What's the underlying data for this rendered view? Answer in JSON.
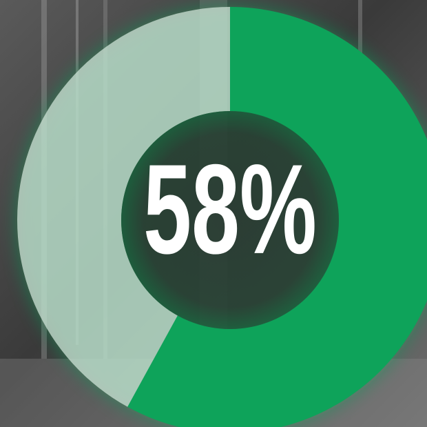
{
  "chart_data": {
    "type": "donut",
    "values": [
      58,
      42
    ],
    "value_labels": [
      "58%",
      null
    ],
    "colors": [
      "#0ea35a",
      "#d6e8dc"
    ]
  }
}
